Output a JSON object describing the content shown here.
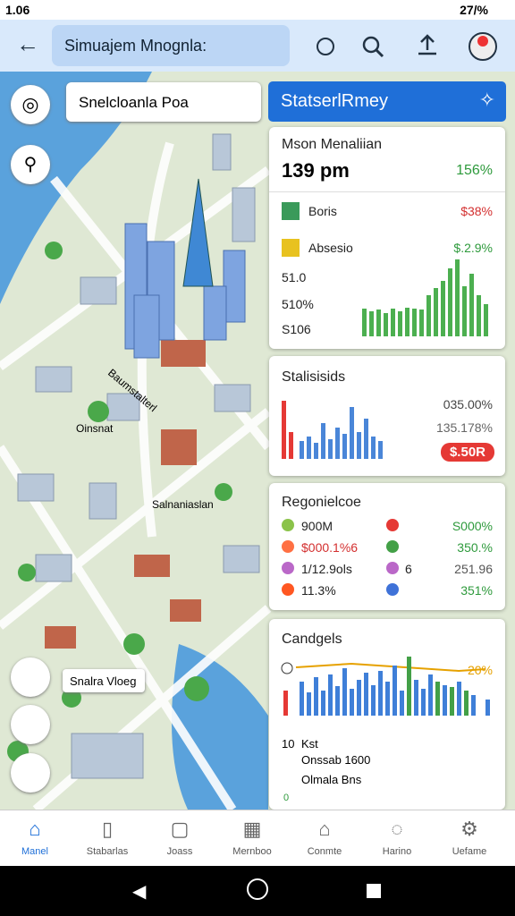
{
  "status_bar": {
    "time": "1.06",
    "battery": "27/%"
  },
  "app_bar": {
    "search": "Simuajem Mnognla:"
  },
  "map": {
    "label_box": "Snelcloanla Poa",
    "labels": [
      "Oinsnat",
      "Salnaniaslan",
      "Snalra Vloeg",
      "Baumstalterl"
    ]
  },
  "panel_header": {
    "title": "StatserlRmey"
  },
  "cards": [
    {
      "title": "Mson Menaliian",
      "value": "139 pm",
      "change": "156%",
      "rows": [
        {
          "label": "Boris",
          "value": "$38%"
        },
        {
          "label": "Absesio",
          "value": "$.2.9%"
        },
        {
          "label": "51.0"
        },
        {
          "label": "510%"
        },
        {
          "label": "S106"
        }
      ]
    },
    {
      "title": "Stalisisids",
      "values": [
        "035.00%",
        "135.178%"
      ],
      "badge": "$.50R"
    },
    {
      "title": "Regonielcoe",
      "rows": [
        {
          "left": "900M",
          "right": "S000%"
        },
        {
          "left": "$000.1%6",
          "right": "350.%"
        },
        {
          "left": "1/12.9ols",
          "mid": "6",
          "right": "251.96"
        },
        {
          "left": "11.3%",
          "right": "351%"
        }
      ]
    },
    {
      "title": "Candgels",
      "peak": "20%",
      "legend": [
        "Kst",
        "Onssab 1600",
        "Olmala Bns"
      ],
      "axis": [
        "10",
        "0"
      ]
    }
  ],
  "bottom_nav": [
    "Manel",
    "Stabarlas",
    "Joass",
    "Mernboo",
    "Conmte",
    "Harino",
    "Uefame"
  ]
}
